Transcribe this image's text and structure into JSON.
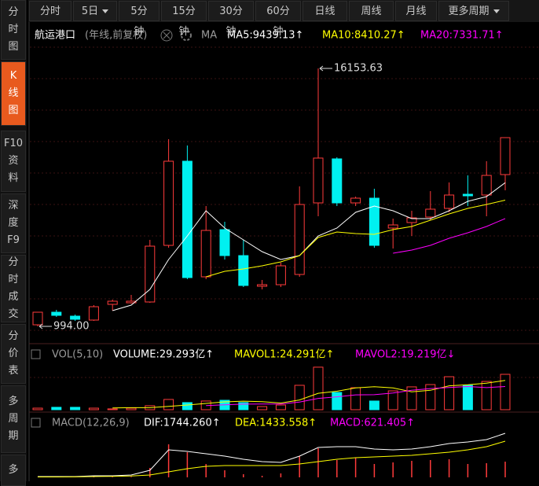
{
  "toolbar": {
    "tabs": [
      "分时",
      "5日",
      "5分钟",
      "15分钟",
      "30分钟",
      "60分钟",
      "日线",
      "周线",
      "月线",
      "更多周期"
    ]
  },
  "sidebar": [
    [
      "分",
      "时",
      "图"
    ],
    [
      "K",
      "线",
      "图"
    ],
    [
      "F10",
      "资",
      "料"
    ],
    [
      "深",
      "度",
      "F9"
    ],
    [
      "分",
      "时",
      "成",
      "交"
    ],
    [
      "分",
      "价",
      "表"
    ],
    [
      "多",
      "周",
      "期"
    ],
    [
      "多"
    ]
  ],
  "chart_data": [
    {
      "type": "candlestick",
      "title": "航运港口",
      "subtitle": "(年线,前复权)",
      "indicator": "MA",
      "categories": [
        null,
        null,
        null,
        null,
        null,
        null,
        null,
        null,
        null,
        null,
        null,
        null,
        null,
        null,
        null,
        null,
        null,
        null,
        null,
        null,
        null,
        null,
        null,
        null,
        null,
        null
      ],
      "open": [
        1086,
        1826,
        1595,
        1364,
        2288,
        2380,
        2427,
        5754,
        10700,
        3906,
        6679,
        5153,
        3351,
        3443,
        4044,
        8250,
        10838,
        8250,
        8528,
        6771,
        7095,
        7418,
        7927,
        8759,
        8713,
        9914
      ],
      "high": [
        1850,
        1965,
        1687,
        2242,
        2565,
        2843,
        6078,
        11994,
        11624,
        8065,
        7141,
        6078,
        3721,
        4738,
        9221,
        16153.63,
        10931,
        8620,
        9082,
        7326,
        7788,
        8943,
        9452,
        9868,
        10700,
        12086
      ],
      "low": [
        994,
        1549,
        1318,
        1318,
        1918,
        2334,
        2380,
        5616,
        3767,
        3767,
        4922,
        3305,
        3166,
        3305,
        3906,
        7465,
        8065,
        8065,
        5616,
        5570,
        6309,
        7233,
        7696,
        8065,
        7465,
        8989
      ],
      "close": [
        1826,
        1641,
        1410,
        2149,
        2473,
        2473,
        5708,
        10700,
        3860,
        6633,
        5153,
        3397,
        3443,
        4553,
        8157,
        10885,
        8250,
        8528,
        5754,
        6956,
        7372,
        7881,
        8713,
        8666,
        9868,
        12086
      ],
      "up_color": "#ff3b3b",
      "down_color": "#00f0f0",
      "ylim": [
        70,
        18788
      ],
      "max_label": "16153.63",
      "min_label": "994.00",
      "series": [
        {
          "label": "MA5:9439.13↑",
          "color": "#ffffff",
          "values": [
            null,
            null,
            null,
            null,
            1918,
            2242,
            3166,
            4923,
            6309,
            7788,
            6771,
            6078,
            5385,
            4923,
            5154,
            6309,
            6771,
            7696,
            8065,
            7788,
            7326,
            7326,
            7788,
            8343,
            8620,
            9439.13
          ]
        },
        {
          "label": "MA10:8410.27↑",
          "color": "#ffff00",
          "values": [
            null,
            null,
            null,
            null,
            null,
            null,
            null,
            null,
            null,
            3906,
            4229,
            4368,
            4553,
            4784,
            5154,
            6217,
            6540,
            6448,
            6402,
            6679,
            6864,
            7233,
            7603,
            7927,
            8158,
            8410.27
          ]
        },
        {
          "label": "MA20:7331.71↑",
          "color": "#ff00ff",
          "values": [
            null,
            null,
            null,
            null,
            null,
            null,
            null,
            null,
            null,
            null,
            null,
            null,
            null,
            null,
            null,
            null,
            null,
            null,
            null,
            5292,
            5477,
            5754,
            6170,
            6494,
            6864,
            7331.71
          ]
        }
      ]
    },
    {
      "type": "volume",
      "title": "VOL(5,10)",
      "label": "VOLUME:29.293亿↑",
      "label_color": "#ffffff",
      "values": [
        1.3,
        2.0,
        2.0,
        1.3,
        0.7,
        1.3,
        3.3,
        8.5,
        5.9,
        7.2,
        7.8,
        5.9,
        2.6,
        3.9,
        20.2,
        35.2,
        14.3,
        18.2,
        7.2,
        15.6,
        18.9,
        20.8,
        27.3,
        20.2,
        23.4,
        29.293
      ],
      "ylim": [
        0,
        52.7
      ],
      "series": [
        {
          "label": "MAVOL1:24.291亿↑",
          "color": "#ffff00",
          "values": [
            null,
            null,
            null,
            null,
            1.5,
            1.7,
            1.7,
            2.8,
            3.9,
            5.2,
            6.5,
            7.1,
            6.7,
            5.5,
            8.1,
            13.6,
            15.3,
            18.1,
            19.0,
            18.1,
            14.8,
            16.1,
            19.8,
            20.6,
            21.9,
            24.291
          ]
        },
        {
          "label": "MAVOL2:19.219亿↓",
          "color": "#ff00ff",
          "values": [
            null,
            null,
            null,
            null,
            null,
            null,
            null,
            null,
            null,
            3.4,
            4.1,
            4.6,
            4.7,
            4.7,
            6.4,
            9.4,
            10.7,
            12.3,
            12.4,
            13.8,
            16.1,
            17.5,
            18.4,
            19.2,
            18.3,
            19.219
          ]
        }
      ]
    },
    {
      "type": "macd",
      "title": "MACD(12,26,9)",
      "ylim": [
        0,
        2492
      ],
      "series": [
        {
          "label": "DIF:1744.260↑",
          "color": "#ffffff",
          "values": [
            31,
            31,
            31,
            62,
            62,
            93,
            280,
            1090,
            1028,
            935,
            841,
            717,
            623,
            592,
            841,
            1184,
            1215,
            1215,
            1121,
            1090,
            1121,
            1215,
            1340,
            1402,
            1495,
            1744.26
          ]
        },
        {
          "label": "DEA:1433.558↑",
          "color": "#ffff00",
          "values": [
            16,
            16,
            20,
            30,
            40,
            55,
            93,
            218,
            343,
            436,
            467,
            467,
            467,
            467,
            530,
            623,
            717,
            779,
            810,
            841,
            872,
            935,
            997,
            1090,
            1215,
            1433.558
          ]
        }
      ],
      "histogram": {
        "label": "MACD:621.405↑",
        "label_color": "#ff00ff",
        "color": "#ff3b3b",
        "values": [
          5,
          10,
          8,
          15,
          20,
          25,
          374,
          1308,
          997,
          530,
          280,
          125,
          62,
          156,
          841,
          1153,
          685,
          779,
          530,
          592,
          654,
          685,
          717,
          530,
          561,
          621.405
        ]
      }
    }
  ]
}
